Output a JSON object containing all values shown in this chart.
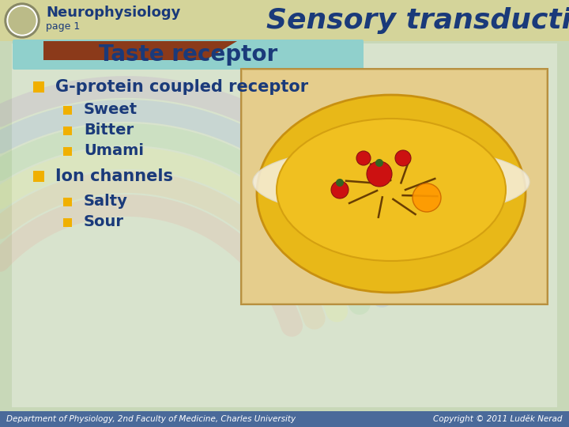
{
  "title": "Sensory transduction",
  "subtitle": "Neurophysiology",
  "subtitle2": "page 1",
  "slide_title": "Taste receptor",
  "main_bullet": "G-protein coupled receptor",
  "sub_bullets_1": [
    "Sweet",
    "Bitter",
    "Umami"
  ],
  "main_bullet2": "Ion channels",
  "sub_bullets_2": [
    "Salty",
    "Sour"
  ],
  "footer_left": "Department of Physiology, 2nd Faculty of Medicine, Charles University",
  "footer_right": "Copyright © 2011 Luděk Nerad",
  "bg_color": "#c8d8b8",
  "header_bar_color": "#d4d49a",
  "header_text_color": "#1a3a7a",
  "brown_bar_color": "#8B3A1A",
  "slide_title_bg": "#90d0cc",
  "bullet_color": "#f0b000",
  "text_color": "#1a3a7a",
  "footer_bg": "#4a6a9a",
  "title_color": "#1a3a7a",
  "title_fontsize": 26,
  "header_fontsize": 13,
  "slide_title_fontsize": 20,
  "main_bullet_fontsize": 15,
  "sub_bullet_fontsize": 14,
  "footer_fontsize": 7.5
}
